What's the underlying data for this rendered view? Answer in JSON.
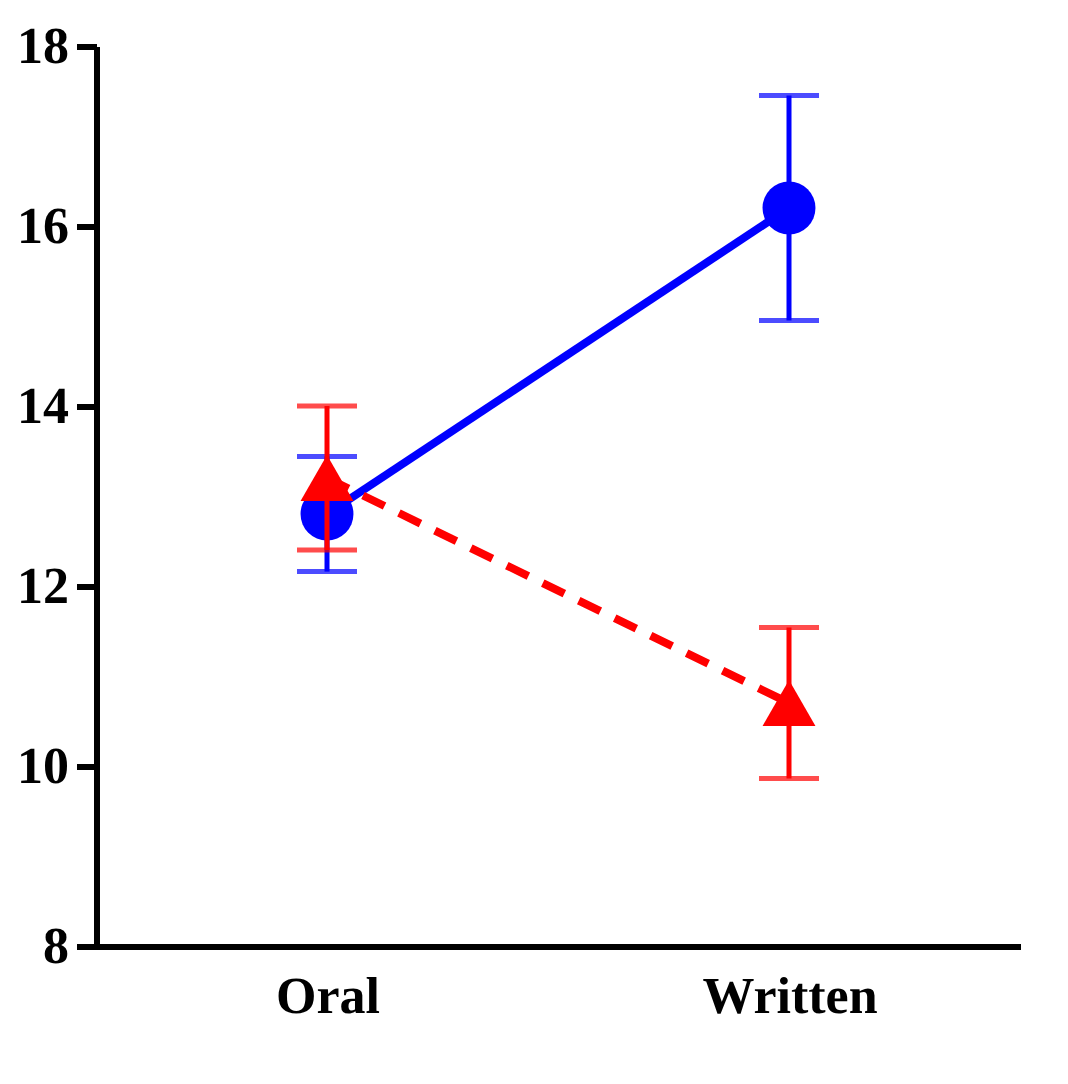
{
  "chart_data": {
    "type": "line",
    "categories": [
      "Oral",
      "Written"
    ],
    "ylim": [
      8,
      18
    ],
    "yticks": [
      8,
      10,
      12,
      14,
      16,
      18
    ],
    "grid": false,
    "series": [
      {
        "color": "#0000ff",
        "values": [
          12.8,
          16.2
        ],
        "errors": [
          0.64,
          1.25
        ],
        "marker": "circle",
        "line_style": "solid"
      },
      {
        "color": "#ff0000",
        "values": [
          13.2,
          10.7
        ],
        "errors": [
          0.8,
          0.84
        ],
        "marker": "triangle",
        "line_style": "dashed"
      }
    ]
  }
}
